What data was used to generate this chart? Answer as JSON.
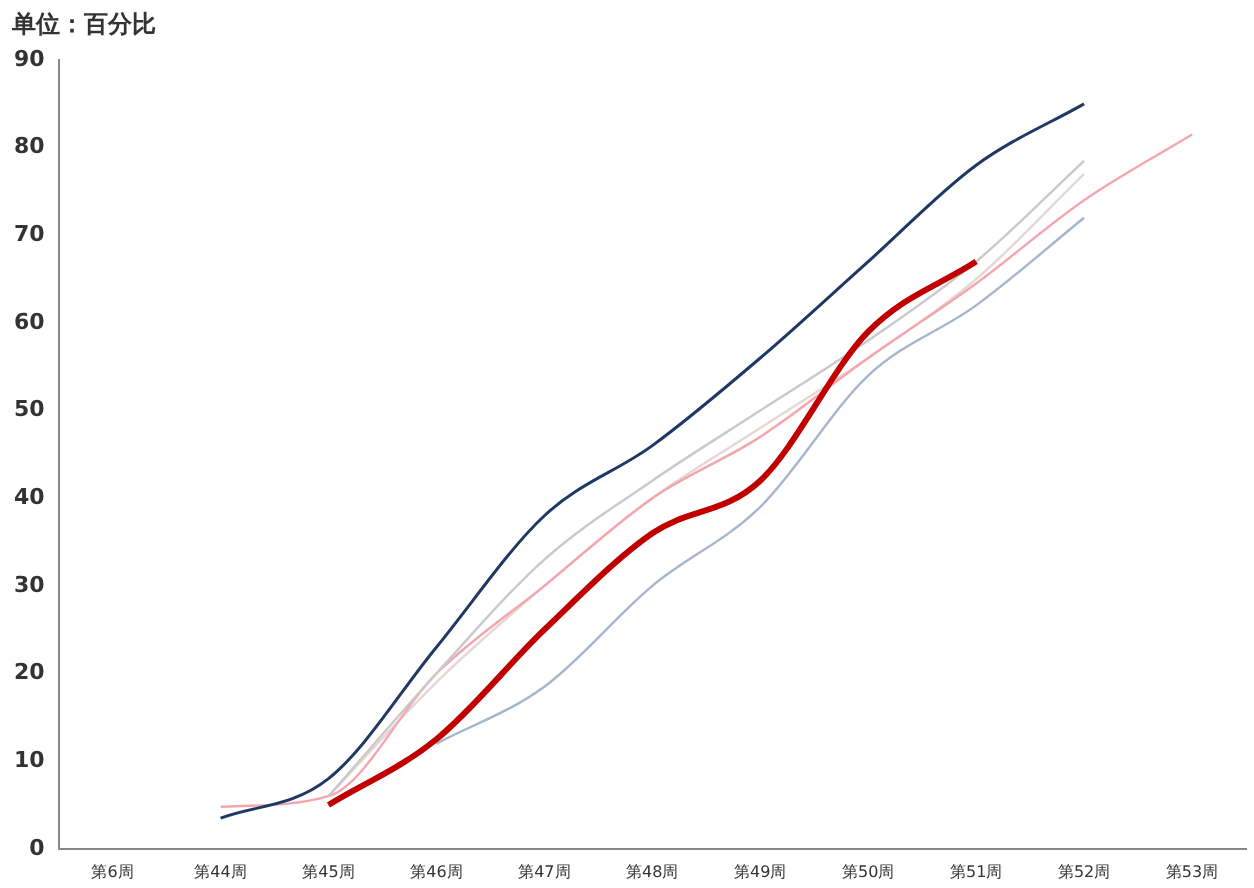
{
  "chart_data": {
    "type": "line",
    "ylabel": "单位：百分比",
    "categories": [
      "第6周",
      "第44周",
      "第45周",
      "第46周",
      "第47周",
      "第48周",
      "第49周",
      "第50周",
      "第51周",
      "第52周",
      "第53周"
    ],
    "series": [
      {
        "color": "#c00000",
        "values": [
          null,
          null,
          5,
          12.5,
          25,
          36,
          42,
          59,
          67,
          null,
          null
        ]
      },
      {
        "color": "#1f3864",
        "values": [
          null,
          3.5,
          8,
          23,
          38,
          46,
          56,
          67,
          78,
          85,
          null
        ]
      },
      {
        "color": "#c9c9c9",
        "values": [
          null,
          null,
          6,
          20,
          33,
          42,
          50,
          58,
          67,
          78.5,
          null
        ]
      },
      {
        "color": "#a6b4cc",
        "values": [
          null,
          null,
          null,
          12,
          18.5,
          30,
          39,
          54,
          62,
          72,
          null
        ]
      },
      {
        "color": "#f4a6ae",
        "values": [
          null,
          4.8,
          6,
          20,
          30,
          40,
          47,
          56,
          64.5,
          74,
          81.5
        ]
      },
      {
        "color": "#e6d6d6",
        "values": [
          null,
          null,
          6,
          19,
          30,
          40,
          48,
          56,
          65,
          77,
          null
        ]
      }
    ],
    "ylim": [
      0,
      90
    ],
    "yticks": [
      0,
      10,
      20,
      30,
      40,
      50,
      60,
      70,
      80,
      90
    ],
    "grid": false,
    "legend": false
  }
}
